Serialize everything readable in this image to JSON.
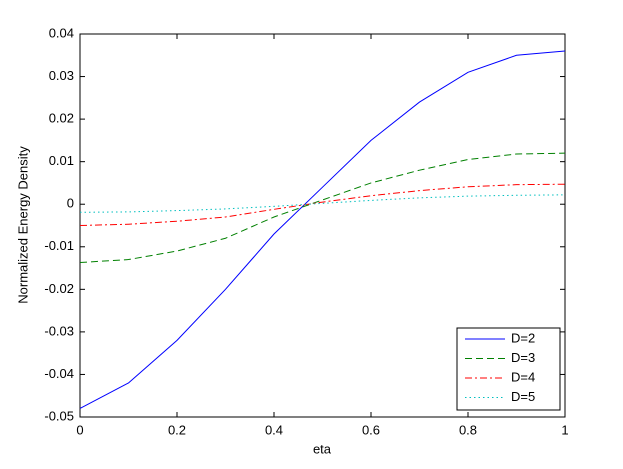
{
  "chart_data": {
    "type": "line",
    "xlabel": "eta",
    "ylabel": "Normalized Energy Density",
    "x": [
      0,
      0.1,
      0.2,
      0.3,
      0.4,
      0.5,
      0.6,
      0.7,
      0.8,
      0.9,
      1
    ],
    "series": [
      {
        "name": "D=2",
        "color": "#0000ff",
        "dash": "solid",
        "values": [
          -0.048,
          -0.042,
          -0.032,
          -0.02,
          -0.007,
          0.004,
          0.015,
          0.024,
          0.031,
          0.035,
          0.036
        ]
      },
      {
        "name": "D=3",
        "color": "#008000",
        "dash": "dashed",
        "values": [
          -0.0137,
          -0.013,
          -0.011,
          -0.008,
          -0.003,
          0.001,
          0.005,
          0.008,
          0.0105,
          0.0118,
          0.012
        ]
      },
      {
        "name": "D=4",
        "color": "#ff0000",
        "dash": "dashdot",
        "values": [
          -0.005,
          -0.0047,
          -0.004,
          -0.003,
          -0.0012,
          0.0005,
          0.002,
          0.0032,
          0.0041,
          0.0046,
          0.0047
        ]
      },
      {
        "name": "D=5",
        "color": "#00bfbf",
        "dash": "dotted",
        "values": [
          -0.0019,
          -0.0018,
          -0.0015,
          -0.0011,
          -0.0005,
          0.0002,
          0.0009,
          0.0015,
          0.0019,
          0.0021,
          0.0022
        ]
      }
    ],
    "xlim": [
      0,
      1
    ],
    "xticks": [
      0,
      0.2,
      0.4,
      0.6,
      0.8,
      1
    ],
    "ylim": [
      -0.05,
      0.04
    ],
    "yticks": [
      -0.05,
      -0.04,
      -0.03,
      -0.02,
      -0.01,
      0,
      0.01,
      0.02,
      0.03,
      0.04
    ],
    "grid": false,
    "legend": "lower right"
  }
}
